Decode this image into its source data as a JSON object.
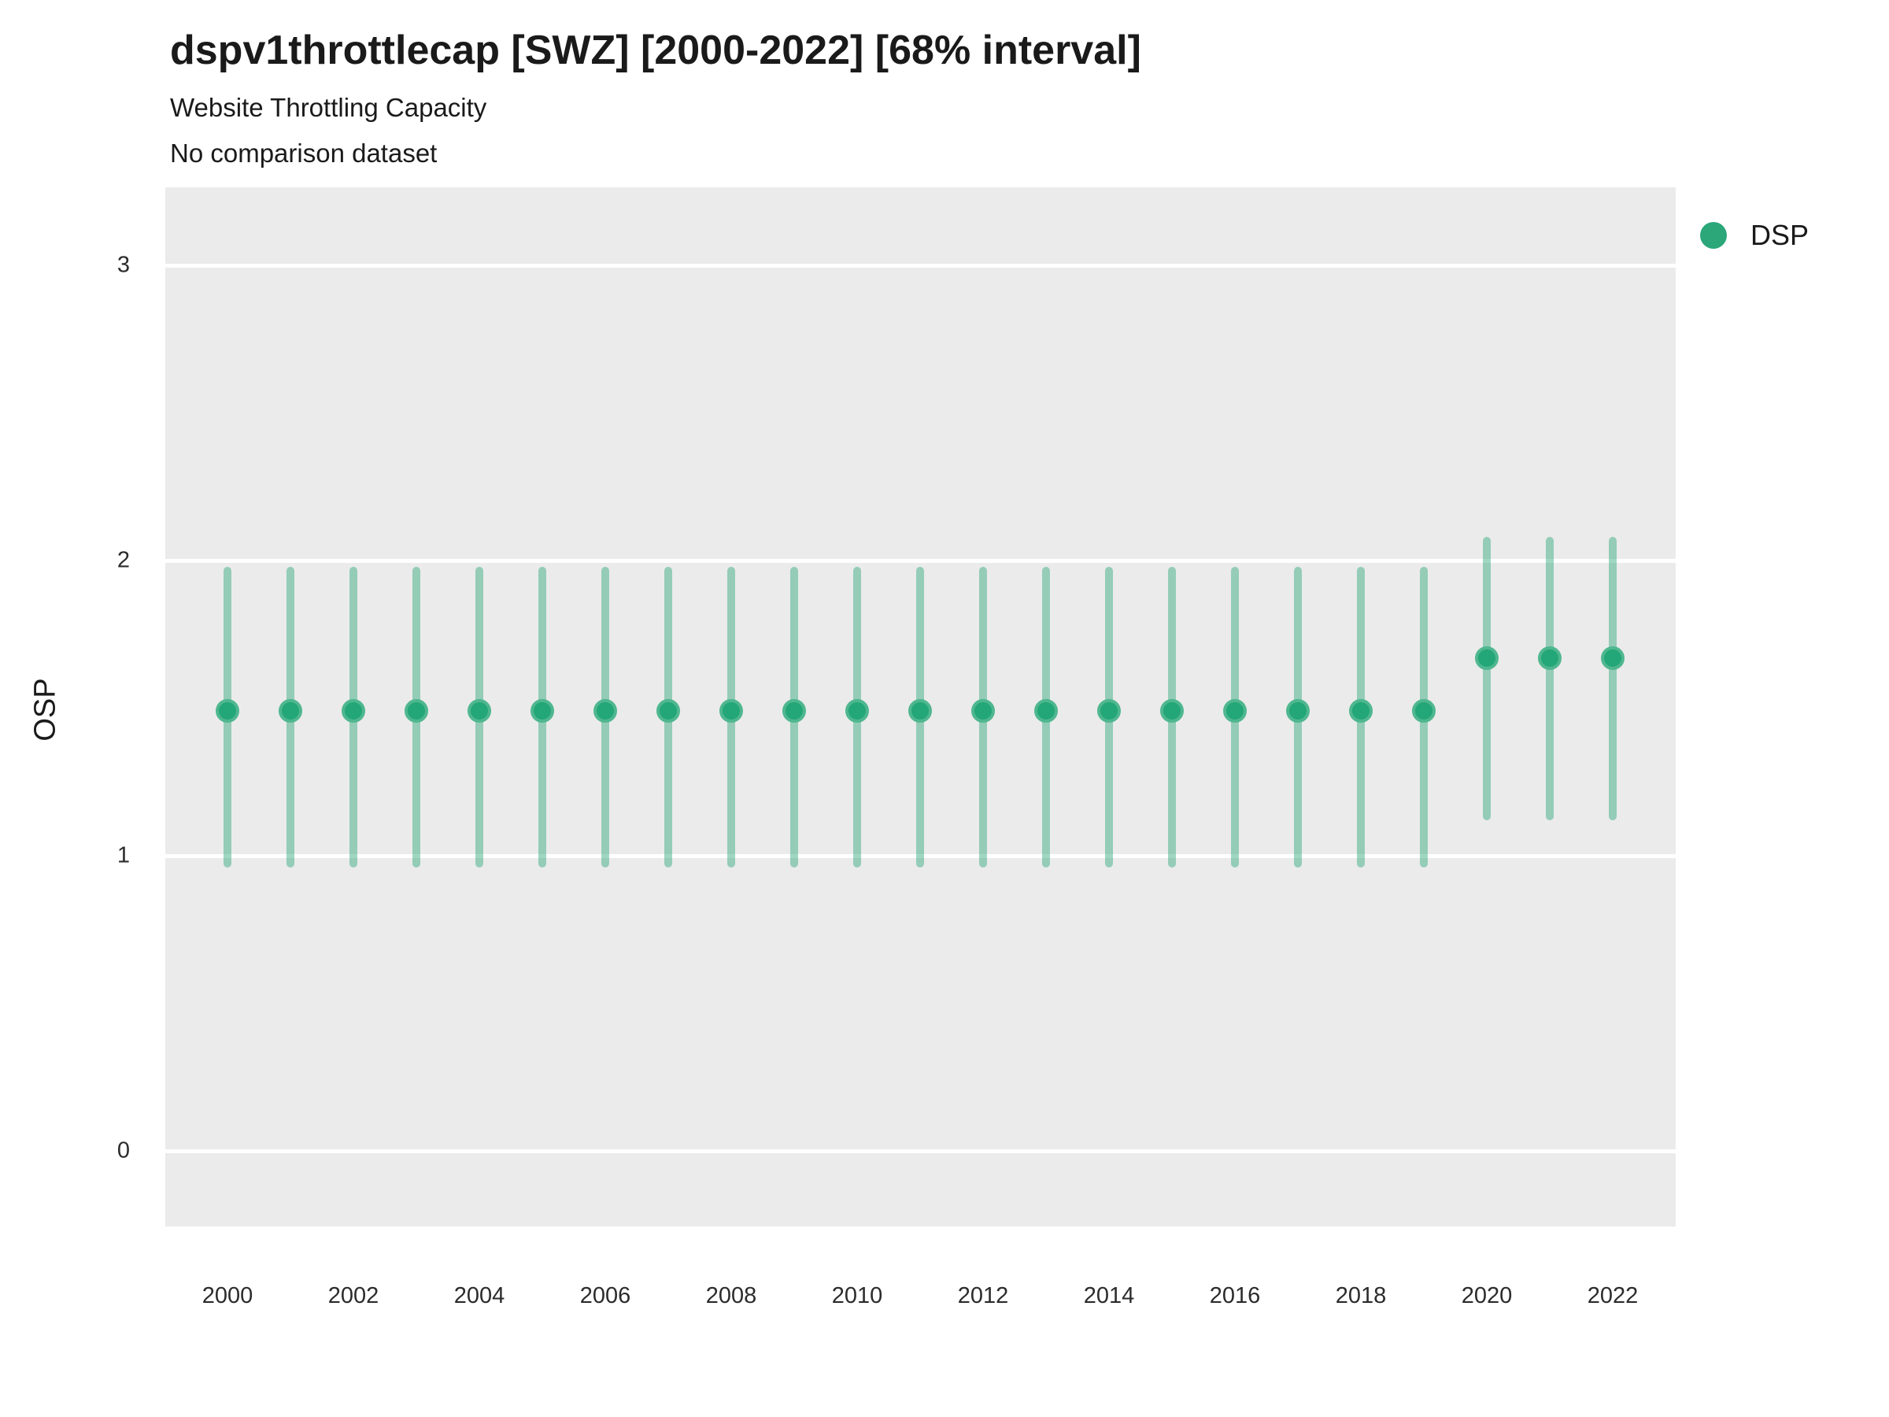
{
  "header": {
    "title": "dspv1throttlecap [SWZ] [2000-2022] [68% interval]",
    "subtitle": "Website Throttling Capacity",
    "note": "No comparison dataset"
  },
  "axes": {
    "y_label": "OSP",
    "y_ticks": [
      0,
      1,
      2,
      3
    ],
    "y_range": [
      -0.26,
      3.26
    ],
    "x_tick_labels": [
      "2000",
      "2002",
      "2004",
      "2006",
      "2008",
      "2010",
      "2012",
      "2014",
      "2016",
      "2018",
      "2020",
      "2022"
    ],
    "x_range": [
      2000,
      2022
    ],
    "grid": "on"
  },
  "legend": {
    "position": "top-right",
    "items": [
      {
        "label": "DSP",
        "color": "#2BA77A"
      }
    ]
  },
  "colors": {
    "panel_background": "#EBEBEB",
    "gridline": "#FFFFFF",
    "interval_bar": "rgba(43,167,121,0.45)",
    "point_fill": "#23A678",
    "point_ring": "#4FB78F",
    "text": "#1a1a1a"
  },
  "chart_data": {
    "type": "scatter",
    "title": "dspv1throttlecap [SWZ] [2000-2022] [68% interval]",
    "subtitle": "Website Throttling Capacity",
    "note": "No comparison dataset",
    "xlabel": "",
    "ylabel": "OSP",
    "interval": "68%",
    "series": [
      {
        "name": "DSP",
        "color": "#2BA77A",
        "points": [
          {
            "year": 2000,
            "value": 1.49,
            "lower": 0.96,
            "upper": 1.98
          },
          {
            "year": 2001,
            "value": 1.49,
            "lower": 0.96,
            "upper": 1.98
          },
          {
            "year": 2002,
            "value": 1.49,
            "lower": 0.96,
            "upper": 1.98
          },
          {
            "year": 2003,
            "value": 1.49,
            "lower": 0.96,
            "upper": 1.98
          },
          {
            "year": 2004,
            "value": 1.49,
            "lower": 0.96,
            "upper": 1.98
          },
          {
            "year": 2005,
            "value": 1.49,
            "lower": 0.96,
            "upper": 1.98
          },
          {
            "year": 2006,
            "value": 1.49,
            "lower": 0.96,
            "upper": 1.98
          },
          {
            "year": 2007,
            "value": 1.49,
            "lower": 0.96,
            "upper": 1.98
          },
          {
            "year": 2008,
            "value": 1.49,
            "lower": 0.96,
            "upper": 1.98
          },
          {
            "year": 2009,
            "value": 1.49,
            "lower": 0.96,
            "upper": 1.98
          },
          {
            "year": 2010,
            "value": 1.49,
            "lower": 0.96,
            "upper": 1.98
          },
          {
            "year": 2011,
            "value": 1.49,
            "lower": 0.96,
            "upper": 1.98
          },
          {
            "year": 2012,
            "value": 1.49,
            "lower": 0.96,
            "upper": 1.98
          },
          {
            "year": 2013,
            "value": 1.49,
            "lower": 0.96,
            "upper": 1.98
          },
          {
            "year": 2014,
            "value": 1.49,
            "lower": 0.96,
            "upper": 1.98
          },
          {
            "year": 2015,
            "value": 1.49,
            "lower": 0.96,
            "upper": 1.98
          },
          {
            "year": 2016,
            "value": 1.49,
            "lower": 0.96,
            "upper": 1.98
          },
          {
            "year": 2017,
            "value": 1.49,
            "lower": 0.96,
            "upper": 1.98
          },
          {
            "year": 2018,
            "value": 1.49,
            "lower": 0.96,
            "upper": 1.98
          },
          {
            "year": 2019,
            "value": 1.49,
            "lower": 0.96,
            "upper": 1.98
          },
          {
            "year": 2020,
            "value": 1.67,
            "lower": 1.12,
            "upper": 2.08
          },
          {
            "year": 2021,
            "value": 1.67,
            "lower": 1.12,
            "upper": 2.08
          },
          {
            "year": 2022,
            "value": 1.67,
            "lower": 1.12,
            "upper": 2.08
          }
        ]
      }
    ]
  }
}
